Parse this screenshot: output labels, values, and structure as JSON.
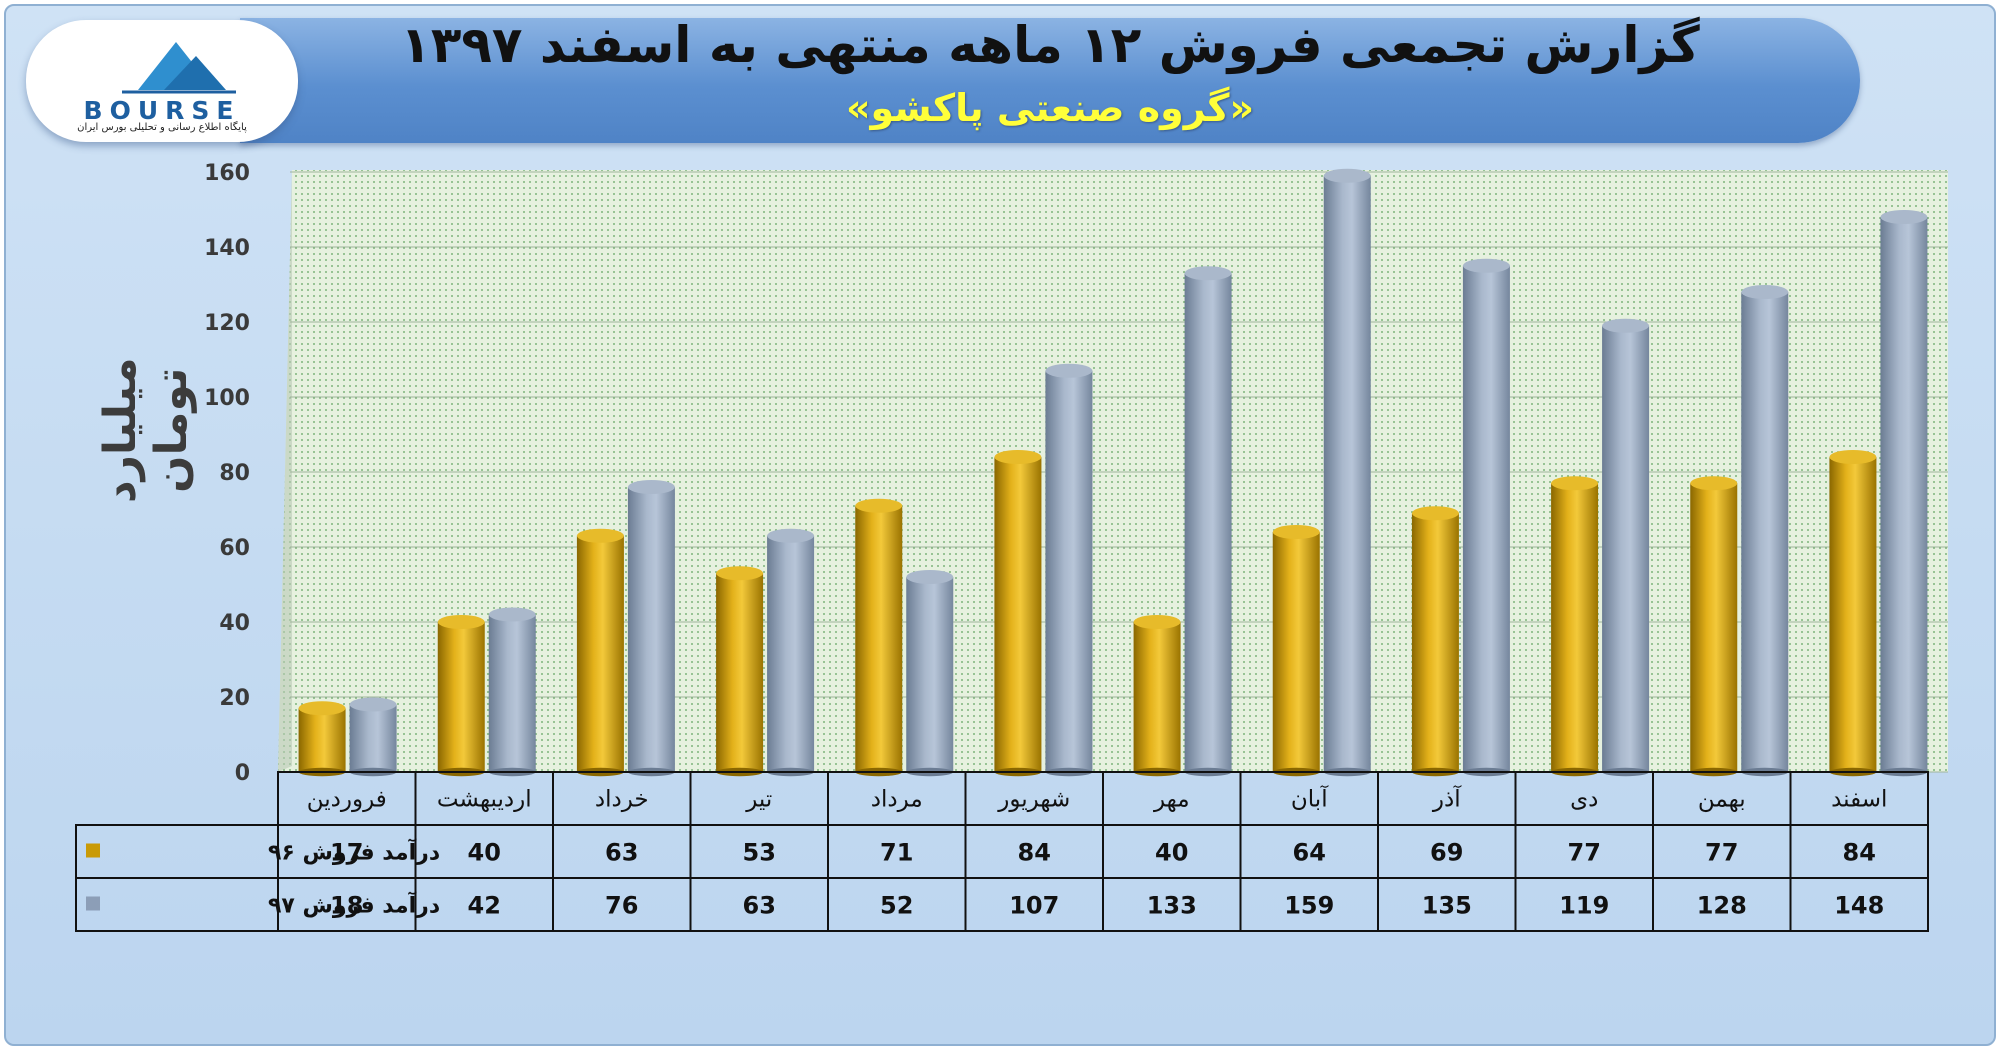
{
  "header": {
    "title": "گزارش تجمعی فروش ۱۲ ماهه منتهی به اسفند ۱۳۹۷",
    "subtitle": "«گروه صنعتی پاکشو»"
  },
  "logo": {
    "text": "BOURSE",
    "tagline": "پایگاه اطلاع رسانی و تحلیلی بورس ایران"
  },
  "colors": {
    "series96": "#c99a06",
    "series97": "#8c9eb7"
  },
  "chart_data": {
    "type": "bar",
    "ylabel": "میلیارد تومان",
    "ylim": [
      0,
      160
    ],
    "yticks": [
      0,
      20,
      40,
      60,
      80,
      100,
      120,
      140,
      160
    ],
    "grid": true,
    "legend": "data table",
    "categories": [
      "فروردین",
      "اردیبهشت",
      "خرداد",
      "تیر",
      "مرداد",
      "شهریور",
      "مهر",
      "آبان",
      "آذر",
      "دی",
      "بهمن",
      "اسفند"
    ],
    "series": [
      {
        "name": "درآمد فروش ۹۶",
        "values": [
          17,
          40,
          63,
          53,
          71,
          84,
          40,
          64,
          69,
          77,
          77,
          84
        ]
      },
      {
        "name": "درآمد فروش ۹۷",
        "values": [
          18,
          42,
          76,
          63,
          52,
          107,
          133,
          159,
          135,
          119,
          128,
          148
        ]
      }
    ]
  }
}
